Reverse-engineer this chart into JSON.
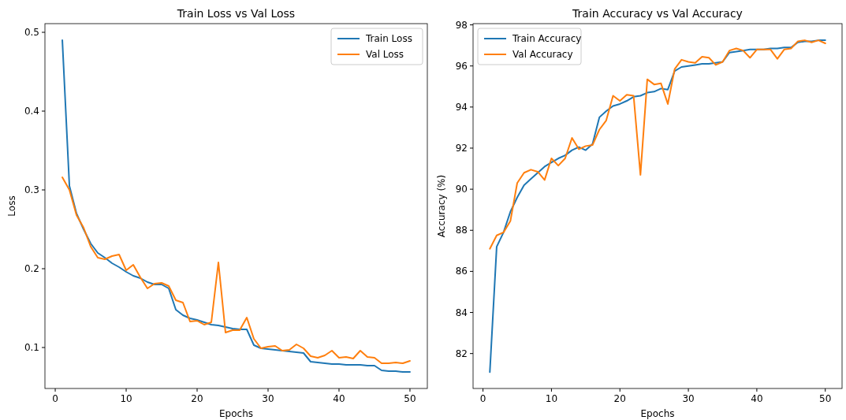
{
  "chart_data": [
    {
      "type": "line",
      "title": "Train Loss vs Val Loss",
      "xlabel": "Epochs",
      "ylabel": "Loss",
      "x": [
        1,
        2,
        3,
        4,
        5,
        6,
        7,
        8,
        9,
        10,
        11,
        12,
        13,
        14,
        15,
        16,
        17,
        18,
        19,
        20,
        21,
        22,
        23,
        24,
        25,
        26,
        27,
        28,
        29,
        30,
        31,
        32,
        33,
        34,
        35,
        36,
        37,
        38,
        39,
        40,
        41,
        42,
        43,
        44,
        45,
        46,
        47,
        48,
        49,
        50
      ],
      "series": [
        {
          "name": "Train Loss",
          "color": "#1f77b4",
          "values": [
            0.49,
            0.305,
            0.27,
            0.25,
            0.232,
            0.22,
            0.214,
            0.207,
            0.202,
            0.196,
            0.191,
            0.188,
            0.183,
            0.18,
            0.18,
            0.175,
            0.148,
            0.141,
            0.137,
            0.135,
            0.132,
            0.129,
            0.128,
            0.126,
            0.124,
            0.123,
            0.123,
            0.103,
            0.099,
            0.098,
            0.097,
            0.096,
            0.095,
            0.094,
            0.093,
            0.082,
            0.081,
            0.08,
            0.079,
            0.079,
            0.078,
            0.078,
            0.078,
            0.077,
            0.077,
            0.071,
            0.07,
            0.07,
            0.069,
            0.069
          ]
        },
        {
          "name": "Val Loss",
          "color": "#ff7f0e",
          "values": [
            0.316,
            0.3,
            0.268,
            0.252,
            0.228,
            0.214,
            0.212,
            0.216,
            0.218,
            0.198,
            0.205,
            0.189,
            0.175,
            0.181,
            0.182,
            0.178,
            0.16,
            0.157,
            0.133,
            0.134,
            0.129,
            0.132,
            0.208,
            0.119,
            0.122,
            0.122,
            0.138,
            0.111,
            0.099,
            0.101,
            0.102,
            0.096,
            0.097,
            0.104,
            0.099,
            0.089,
            0.087,
            0.09,
            0.096,
            0.087,
            0.088,
            0.086,
            0.096,
            0.088,
            0.087,
            0.08,
            0.08,
            0.081,
            0.08,
            0.083
          ]
        }
      ],
      "xlim": [
        -1.45,
        52.45
      ],
      "xticks": [
        0,
        10,
        20,
        30,
        40,
        50
      ],
      "ylim": [
        0.048,
        0.511
      ],
      "yticks": [
        0.1,
        0.2,
        0.3,
        0.4,
        0.5
      ],
      "legend": "top right",
      "line_style": "solid",
      "grid": false
    },
    {
      "type": "line",
      "title": "Train Accuracy vs Val Accuracy",
      "xlabel": "Epochs",
      "ylabel": "Accuracy (%)",
      "x": [
        1,
        2,
        3,
        4,
        5,
        6,
        7,
        8,
        9,
        10,
        11,
        12,
        13,
        14,
        15,
        16,
        17,
        18,
        19,
        20,
        21,
        22,
        23,
        24,
        25,
        26,
        27,
        28,
        29,
        30,
        31,
        32,
        33,
        34,
        35,
        36,
        37,
        38,
        39,
        40,
        41,
        42,
        43,
        44,
        45,
        46,
        47,
        48,
        49,
        50
      ],
      "series": [
        {
          "name": "Train Accuracy",
          "color": "#1f77b4",
          "values": [
            81.1,
            87.2,
            87.9,
            88.9,
            89.6,
            90.2,
            90.5,
            90.8,
            91.1,
            91.3,
            91.5,
            91.65,
            91.9,
            92.05,
            91.9,
            92.2,
            93.5,
            93.8,
            94.05,
            94.15,
            94.3,
            94.5,
            94.55,
            94.7,
            94.75,
            94.9,
            94.85,
            95.75,
            95.95,
            96.0,
            96.05,
            96.1,
            96.1,
            96.15,
            96.2,
            96.65,
            96.7,
            96.75,
            96.8,
            96.8,
            96.8,
            96.85,
            96.85,
            96.9,
            96.9,
            97.15,
            97.2,
            97.2,
            97.25,
            97.25
          ]
        },
        {
          "name": "Val Accuracy",
          "color": "#ff7f0e",
          "values": [
            87.1,
            87.75,
            87.9,
            88.45,
            90.3,
            90.8,
            90.95,
            90.85,
            90.45,
            91.5,
            91.15,
            91.5,
            92.5,
            91.95,
            92.1,
            92.15,
            92.9,
            93.35,
            94.55,
            94.3,
            94.6,
            94.55,
            90.7,
            95.35,
            95.1,
            95.15,
            94.15,
            95.85,
            96.3,
            96.2,
            96.15,
            96.45,
            96.4,
            96.05,
            96.2,
            96.75,
            96.85,
            96.75,
            96.4,
            96.8,
            96.8,
            96.8,
            96.35,
            96.8,
            96.85,
            97.2,
            97.25,
            97.15,
            97.25,
            97.1
          ]
        }
      ],
      "xlim": [
        -1.45,
        52.45
      ],
      "xticks": [
        0,
        10,
        20,
        30,
        40,
        50
      ],
      "ylim": [
        80.3,
        98.06
      ],
      "yticks": [
        82,
        84,
        86,
        88,
        90,
        92,
        94,
        96,
        98
      ],
      "legend": "top left",
      "line_style": "solid",
      "grid": false
    }
  ]
}
